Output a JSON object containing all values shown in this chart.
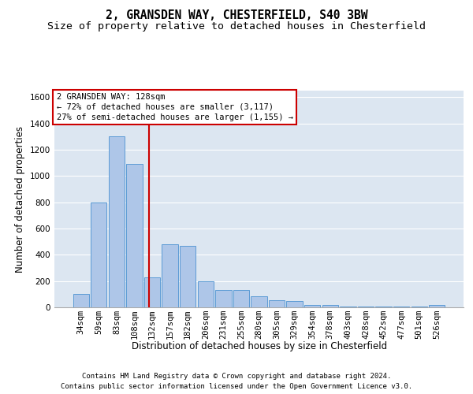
{
  "title_line1": "2, GRANSDEN WAY, CHESTERFIELD, S40 3BW",
  "title_line2": "Size of property relative to detached houses in Chesterfield",
  "xlabel": "Distribution of detached houses by size in Chesterfield",
  "ylabel": "Number of detached properties",
  "bar_color": "#aec6e8",
  "bar_edge_color": "#5b9bd5",
  "background_color": "#dce6f1",
  "categories": [
    "34sqm",
    "59sqm",
    "83sqm",
    "108sqm",
    "132sqm",
    "157sqm",
    "182sqm",
    "206sqm",
    "231sqm",
    "255sqm",
    "280sqm",
    "305sqm",
    "329sqm",
    "354sqm",
    "378sqm",
    "403sqm",
    "428sqm",
    "452sqm",
    "477sqm",
    "501sqm",
    "526sqm"
  ],
  "values": [
    100,
    800,
    1300,
    1090,
    230,
    480,
    470,
    200,
    130,
    130,
    85,
    55,
    50,
    20,
    20,
    5,
    5,
    5,
    5,
    5,
    20
  ],
  "ylim": [
    0,
    1650
  ],
  "yticks": [
    0,
    200,
    400,
    600,
    800,
    1000,
    1200,
    1400,
    1600
  ],
  "annotation_title": "2 GRANSDEN WAY: 128sqm",
  "annotation_line2": "← 72% of detached houses are smaller (3,117)",
  "annotation_line3": "27% of semi-detached houses are larger (1,155) →",
  "annotation_box_color": "#ffffff",
  "annotation_box_edge": "#cc0000",
  "vline_color": "#cc0000",
  "footer_line1": "Contains HM Land Registry data © Crown copyright and database right 2024.",
  "footer_line2": "Contains public sector information licensed under the Open Government Licence v3.0.",
  "title_fontsize": 10.5,
  "subtitle_fontsize": 9.5,
  "axis_label_fontsize": 8.5,
  "tick_fontsize": 7.5,
  "annotation_fontsize": 7.5,
  "footer_fontsize": 6.5,
  "vline_x_index": 3.83
}
